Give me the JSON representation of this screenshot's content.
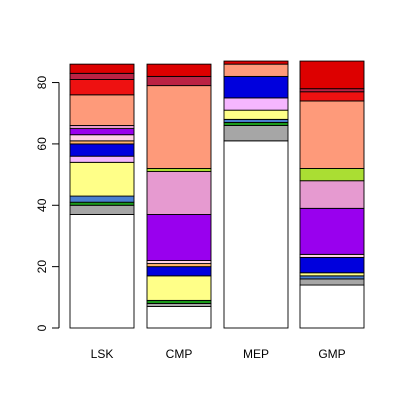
{
  "chart_data": {
    "type": "bar",
    "stacked": true,
    "categories": [
      "LSK",
      "CMP",
      "MEP",
      "GMP"
    ],
    "ylim": [
      0,
      88
    ],
    "y_ticks": [
      0,
      20,
      40,
      60,
      80
    ],
    "grid": false,
    "legend": "none",
    "series": [
      {
        "color": "#ffffff",
        "values": [
          37,
          7,
          61,
          14
        ]
      },
      {
        "color": "#a6a6a6",
        "values": [
          3,
          1,
          5,
          2
        ]
      },
      {
        "color": "#1a9a1a",
        "values": [
          1,
          1,
          1,
          0
        ]
      },
      {
        "color": "#4a7fd0",
        "values": [
          2,
          0,
          1,
          1
        ]
      },
      {
        "color": "#ffff88",
        "values": [
          11,
          8,
          3,
          1
        ]
      },
      {
        "color": "#f5b6ff",
        "values": [
          2,
          0,
          4,
          0
        ]
      },
      {
        "color": "#0000dd",
        "values": [
          4,
          3,
          7,
          5
        ]
      },
      {
        "color": "#ffb36b",
        "values": [
          1,
          1,
          0,
          0
        ]
      },
      {
        "color": "#ffd0e6",
        "values": [
          2,
          1,
          0,
          1
        ]
      },
      {
        "color": "#9900ee",
        "values": [
          2,
          15,
          0,
          15
        ]
      },
      {
        "color": "#e69ad0",
        "values": [
          1,
          14,
          0,
          9
        ]
      },
      {
        "color": "#aade33",
        "values": [
          0,
          1,
          0,
          4
        ]
      },
      {
        "color": "#fe9a7a",
        "values": [
          10,
          27,
          4,
          22
        ]
      },
      {
        "color": "#ee1111",
        "values": [
          5,
          0,
          0,
          3
        ]
      },
      {
        "color": "#bb2244",
        "values": [
          2,
          3,
          0,
          1
        ]
      },
      {
        "color": "#dd0000",
        "values": [
          3,
          4,
          1,
          9
        ]
      }
    ]
  }
}
